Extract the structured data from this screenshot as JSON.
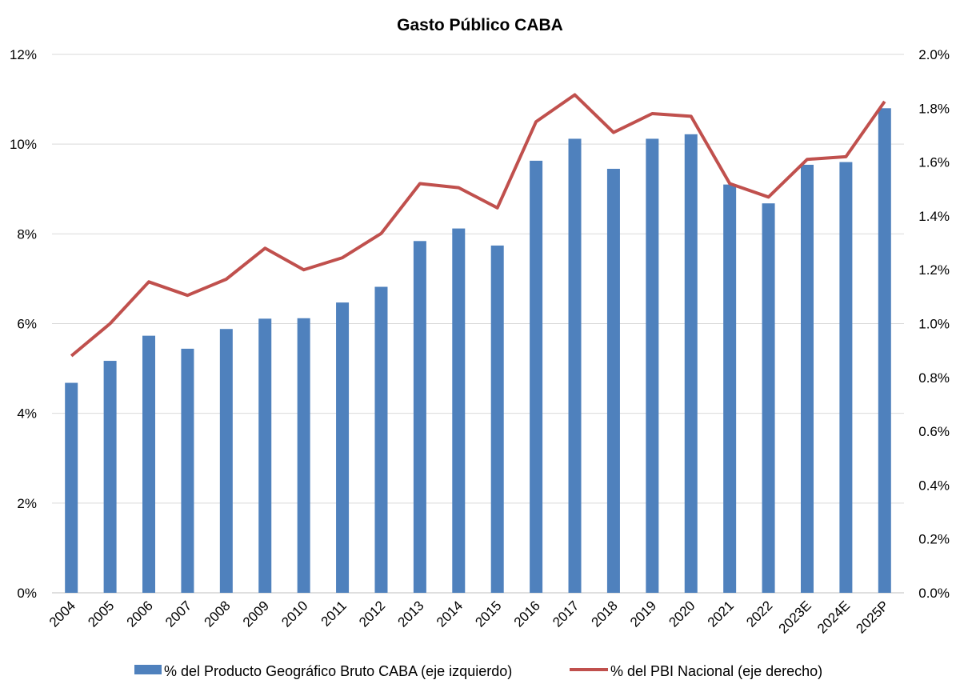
{
  "chart_data": {
    "type": "bar+line",
    "title": "Gasto Público CABA",
    "categories": [
      "2004",
      "2005",
      "2006",
      "2007",
      "2008",
      "2009",
      "2010",
      "2011",
      "2012",
      "2013",
      "2014",
      "2015",
      "2016",
      "2017",
      "2018",
      "2019",
      "2020",
      "2021",
      "2022",
      "2023E",
      "2024E",
      "2025P"
    ],
    "series": [
      {
        "name": "% del Producto Geográfico Bruto CABA (eje izquierdo)",
        "type": "bar",
        "axis": "left",
        "color": "#4F81BD",
        "values": [
          4.68,
          5.17,
          5.73,
          5.44,
          5.88,
          6.11,
          6.12,
          6.47,
          6.82,
          7.84,
          8.12,
          7.74,
          9.63,
          10.12,
          9.45,
          10.12,
          10.22,
          9.1,
          8.68,
          9.54,
          9.6,
          10.8
        ]
      },
      {
        "name": "% del PBI Nacional (eje derecho)",
        "type": "line",
        "axis": "right",
        "color": "#C0504D",
        "values": [
          0.88,
          1.0,
          1.155,
          1.105,
          1.165,
          1.28,
          1.2,
          1.245,
          1.335,
          1.52,
          1.505,
          1.43,
          1.75,
          1.85,
          1.71,
          1.78,
          1.77,
          1.52,
          1.47,
          1.61,
          1.62,
          1.825
        ]
      }
    ],
    "y_left": {
      "min": 0,
      "max": 12,
      "step": 2,
      "tick_labels": [
        "0%",
        "2%",
        "4%",
        "6%",
        "8%",
        "10%",
        "12%"
      ]
    },
    "y_right": {
      "min": 0,
      "max": 2,
      "step": 0.2,
      "tick_labels": [
        "0.0%",
        "0.2%",
        "0.4%",
        "0.6%",
        "0.8%",
        "1.0%",
        "1.2%",
        "1.4%",
        "1.6%",
        "1.8%",
        "2.0%"
      ]
    },
    "grid": true,
    "legend_position": "bottom"
  }
}
